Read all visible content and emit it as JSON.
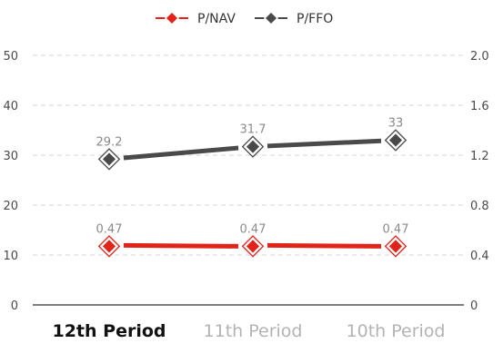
{
  "chart_data": {
    "type": "line",
    "categories": [
      "12th Period",
      "11th Period",
      "10th Period"
    ],
    "active_category": "12th Period",
    "y_left": {
      "min": 0,
      "max": 50,
      "ticks": [
        "0",
        "10",
        "20",
        "30",
        "40",
        "50"
      ]
    },
    "y_right": {
      "min": 0,
      "max": 2.0,
      "ticks": [
        "0",
        "0.4",
        "0.8",
        "1.2",
        "1.6",
        "2.0"
      ]
    },
    "series": [
      {
        "name": "P/NAV",
        "axis": "right",
        "values": [
          0.47,
          0.47,
          0.47
        ],
        "labels": [
          "0.47",
          "0.47",
          "0.47"
        ],
        "color": "#e2231a"
      },
      {
        "name": "P/FFO",
        "axis": "left",
        "values": [
          29.2,
          31.7,
          33
        ],
        "labels": [
          "29.2",
          "31.7",
          "33"
        ],
        "color": "#4a4a4a"
      }
    ],
    "grid": true,
    "legend": "top-center"
  }
}
